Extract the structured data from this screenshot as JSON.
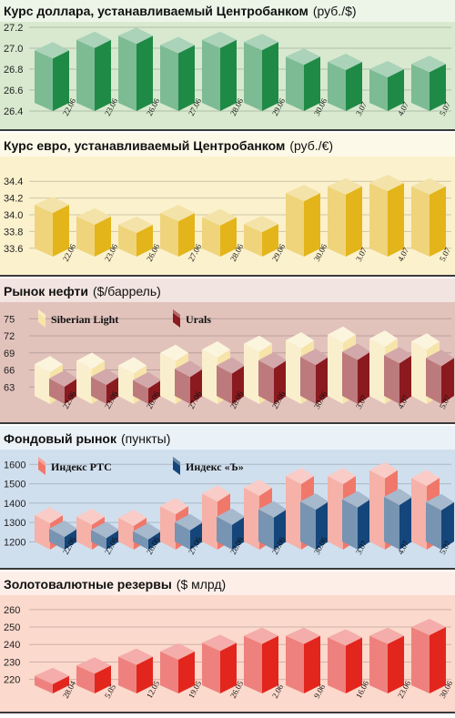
{
  "chart_data": [
    {
      "type": "bar",
      "title": "Курс доллара, устанавливаемый Центробанком",
      "unit": "(руб./$)",
      "yticks": [
        26.4,
        26.6,
        26.8,
        27.0,
        27.2
      ],
      "ylim": [
        26.4,
        27.2
      ],
      "categories": [
        "22.06",
        "23.06",
        "26.06",
        "27.06",
        "28.06",
        "29.06",
        "30.06",
        "3.07",
        "4.07",
        "5.07"
      ],
      "series": [
        {
          "values": [
            26.98,
            27.08,
            27.12,
            27.03,
            27.08,
            27.06,
            26.92,
            26.87,
            26.8,
            26.85
          ]
        }
      ],
      "colors": {
        "background": "#d8e9cf",
        "series": [
          "#1f8a46"
        ]
      }
    },
    {
      "type": "bar",
      "title": "Курс евро, устанавливаемый Центробанком",
      "unit": "(руб./€)",
      "yticks": [
        33.6,
        33.8,
        34.0,
        34.2,
        34.4
      ],
      "ylim": [
        33.5,
        34.5
      ],
      "categories": [
        "22.06",
        "23.06",
        "26.06",
        "27.06",
        "28.06",
        "29.06",
        "30.06",
        "3.07",
        "4.07",
        "5.07"
      ],
      "series": [
        {
          "values": [
            34.12,
            33.98,
            33.88,
            34.02,
            33.97,
            33.89,
            34.26,
            34.34,
            34.38,
            34.34
          ]
        }
      ],
      "colors": {
        "background": "#fbf1cd",
        "series": [
          "#e3b51b"
        ]
      }
    },
    {
      "type": "bar",
      "title": "Рынок нефти",
      "unit": "($/баррель)",
      "yticks": [
        63,
        66,
        69,
        72,
        75
      ],
      "ylim": [
        60,
        76
      ],
      "categories": [
        "22.06",
        "23.06",
        "26.06",
        "27.06",
        "28.06",
        "29.06",
        "30.06",
        "3.07",
        "4.07",
        "5.07"
      ],
      "series": [
        {
          "name": "Siberian Light",
          "values": [
            67.0,
            67.6,
            66.8,
            69.0,
            69.6,
            70.6,
            71.2,
            72.2,
            71.5,
            71.0
          ]
        },
        {
          "name": "Urals",
          "values": [
            64.5,
            64.8,
            64.2,
            66.2,
            66.8,
            67.7,
            68.3,
            69.2,
            68.6,
            68.1
          ]
        }
      ],
      "colors": {
        "background": "#e2c3bc",
        "series": [
          "#f6e4a8",
          "#8b1a1f"
        ]
      }
    },
    {
      "type": "bar",
      "title": "Фондовый рынок",
      "unit": "(пункты)",
      "yticks": [
        1200,
        1300,
        1400,
        1500,
        1600
      ],
      "ylim": [
        1160,
        1620
      ],
      "categories": [
        "22.06",
        "23.06",
        "26.06",
        "27.06",
        "28.06",
        "29.06",
        "30.06",
        "3.07",
        "4.07",
        "5.07"
      ],
      "series": [
        {
          "name": "Индекс РТС",
          "values": [
            1338,
            1330,
            1325,
            1385,
            1450,
            1480,
            1540,
            1540,
            1570,
            1530
          ]
        },
        {
          "name": "Индекс «Ъ»",
          "values": [
            1268,
            1262,
            1255,
            1302,
            1330,
            1368,
            1408,
            1420,
            1432,
            1405
          ]
        }
      ],
      "colors": {
        "background": "#d0dfee",
        "series": [
          "#f0786b",
          "#15467b"
        ]
      }
    },
    {
      "type": "bar",
      "title": "Золотовалютные резервы",
      "unit": "($ млрд)",
      "yticks": [
        220,
        230,
        240,
        250,
        260
      ],
      "ylim": [
        212,
        262
      ],
      "categories": [
        "28.04",
        "5.05",
        "12.05",
        "19.05",
        "26.05",
        "2.06",
        "9.06",
        "16.06",
        "23.06",
        "30.06"
      ],
      "series": [
        {
          "values": [
            222,
            228,
            233,
            236,
            241,
            245,
            245,
            244,
            245,
            250
          ]
        }
      ],
      "colors": {
        "background": "#fbd9cc",
        "series": [
          "#e2261e"
        ]
      }
    }
  ]
}
